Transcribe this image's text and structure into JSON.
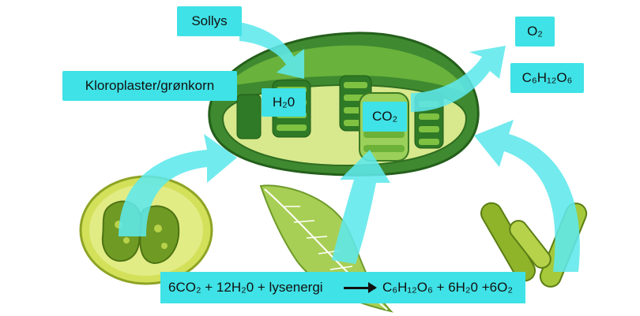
{
  "labels": {
    "sunlight": "Sollys",
    "chloroplast": "Kloroplaster/grønkorn",
    "water": "H₂0",
    "co2": "CO₂",
    "o2": "O₂",
    "glucose": "C₆H₁₂O₆"
  },
  "equation": {
    "reactants": "6CO₂ + 12H₂0 + lysenergi",
    "products": "C₆H₁₂O₆ + 6H₂0 +6O₂"
  },
  "colors": {
    "label_bg": "#3fe2e6",
    "arrow": "#5fe8ec",
    "chloroplast_dark": "#2f7a2a",
    "chloroplast_light": "#8cc63f"
  }
}
